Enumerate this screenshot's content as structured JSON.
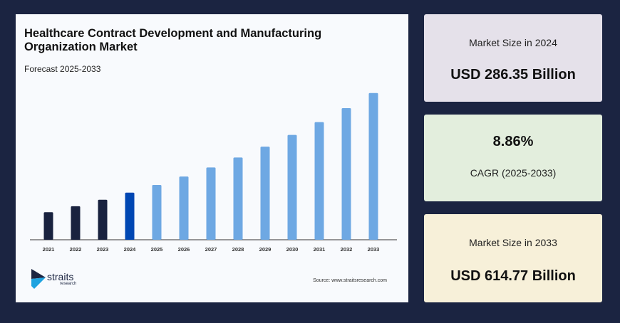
{
  "chart_data": {
    "type": "bar",
    "title": "Healthcare Contract Development and Manufacturing Organization Market",
    "subtitle": "Forecast 2025-2033",
    "categories": [
      "2021",
      "2022",
      "2023",
      "2024",
      "2025",
      "2026",
      "2027",
      "2028",
      "2029",
      "2030",
      "2031",
      "2032",
      "2033"
    ],
    "values": [
      222.0,
      241.6,
      263.0,
      286.35,
      311.7,
      339.4,
      369.5,
      402.2,
      437.9,
      476.7,
      519.0,
      565.0,
      614.77
    ],
    "unit": "USD Billion",
    "ylim": [
      131,
      640
    ],
    "grid": false,
    "colors": {
      "historical": "#19223f",
      "base_year": "#0047b3",
      "forecast": "#6ea8e3"
    },
    "xlabel": "",
    "ylabel": ""
  },
  "branding": {
    "logo_name": "straits",
    "logo_sub": "research",
    "source": "Source: www.straitsresearch.com"
  },
  "cards": [
    {
      "label": "Market Size in 2024",
      "value": "USD 286.35 Billion",
      "color": "#e5e1ea"
    },
    {
      "label": "CAGR (2025-2033)",
      "value": "8.86%",
      "color": "#e3eedd"
    },
    {
      "label": "Market Size in 2033",
      "value": "USD 614.77 Billion",
      "color": "#f7f0d9"
    }
  ]
}
